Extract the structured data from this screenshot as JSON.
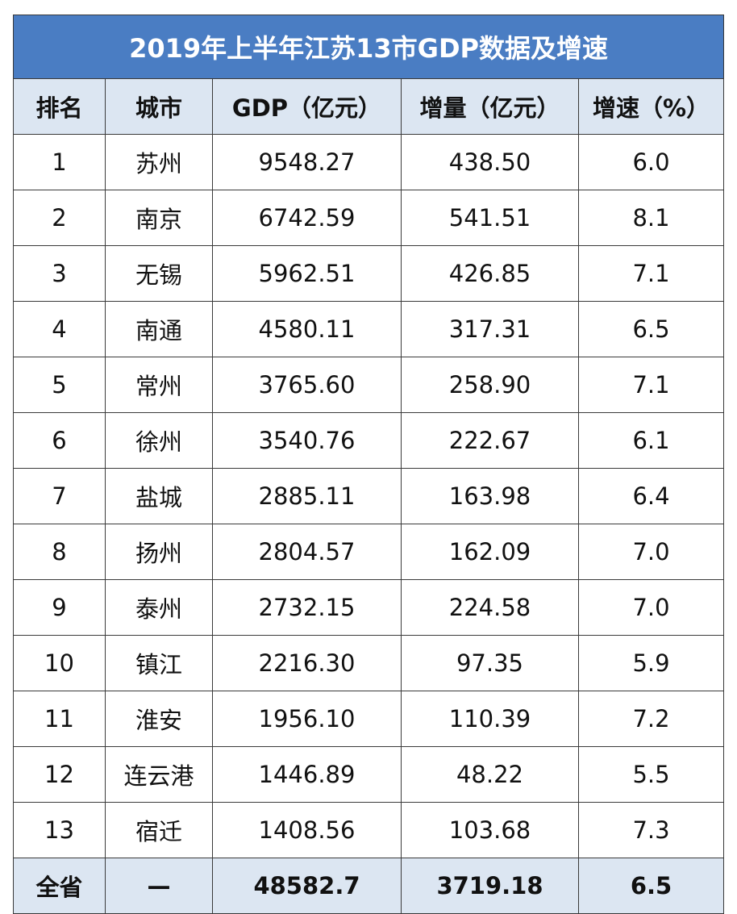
{
  "title": "2019年上半年江苏13市GDP数据及增速",
  "table": {
    "header": [
      "排名",
      "城市",
      "GDP（亿元）",
      "增量（亿元）",
      "增速（%）"
    ],
    "rows": [
      [
        "1",
        "苏州",
        "9548.27",
        "438.50",
        "6.0"
      ],
      [
        "2",
        "南京",
        "6742.59",
        "541.51",
        "8.1"
      ],
      [
        "3",
        "无锡",
        "5962.51",
        "426.85",
        "7.1"
      ],
      [
        "4",
        "南通",
        "4580.11",
        "317.31",
        "6.5"
      ],
      [
        "5",
        "常州",
        "3765.60",
        "258.90",
        "7.1"
      ],
      [
        "6",
        "徐州",
        "3540.76",
        "222.67",
        "6.1"
      ],
      [
        "7",
        "盐城",
        "2885.11",
        "163.98",
        "6.4"
      ],
      [
        "8",
        "扬州",
        "2804.57",
        "162.09",
        "7.0"
      ],
      [
        "9",
        "泰州",
        "2732.15",
        "224.58",
        "7.0"
      ],
      [
        "10",
        "镇江",
        "2216.30",
        "97.35",
        "5.9"
      ],
      [
        "11",
        "淮安",
        "1956.10",
        "110.39",
        "7.2"
      ],
      [
        "12",
        "连云港",
        "1446.89",
        "48.22",
        "5.5"
      ],
      [
        "13",
        "宿迁",
        "1408.56",
        "103.68",
        "7.3"
      ]
    ],
    "total": [
      "全省",
      "—",
      "48582.7",
      "3719.18",
      "6.5"
    ]
  }
}
